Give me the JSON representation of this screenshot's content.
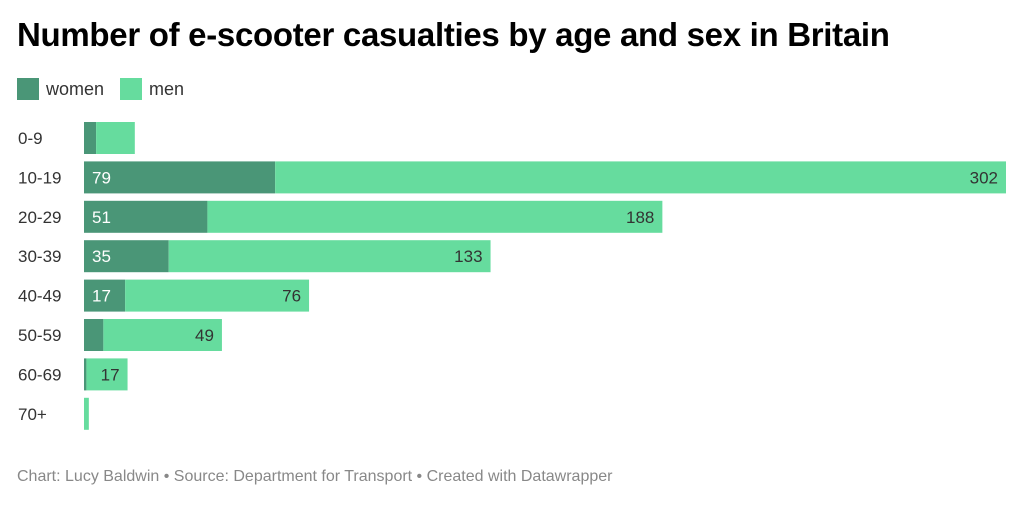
{
  "chart_data": {
    "type": "bar",
    "orientation": "horizontal",
    "stacked": true,
    "title": "Number of e-scooter casualties by age and sex in Britain",
    "categories": [
      "0-9",
      "10-19",
      "20-29",
      "30-39",
      "40-49",
      "50-59",
      "60-69",
      "70+"
    ],
    "series": [
      {
        "name": "women",
        "color": "#4a9677",
        "values": [
          5,
          79,
          51,
          35,
          17,
          8,
          1,
          0
        ],
        "labels": [
          "",
          "79",
          "51",
          "35",
          "17",
          "",
          "",
          ""
        ]
      },
      {
        "name": "men",
        "color": "#66dc9e",
        "values": [
          16,
          302,
          188,
          133,
          76,
          49,
          17,
          2
        ],
        "labels": [
          "",
          "302",
          "188",
          "133",
          "76",
          "49",
          "17",
          ""
        ]
      }
    ],
    "xlabel": "",
    "ylabel": "",
    "xlim": [
      0,
      381
    ],
    "grid": false,
    "legend": "top-left"
  },
  "header": {
    "title": "Number of e-scooter casualties by age and sex in Britain"
  },
  "legend": {
    "items": [
      {
        "label": "women",
        "color": "#4a9677"
      },
      {
        "label": "men",
        "color": "#66dc9e"
      }
    ]
  },
  "footer": {
    "text": "Chart: Lucy Baldwin • Source: Department for Transport • Created with Datawrapper"
  }
}
